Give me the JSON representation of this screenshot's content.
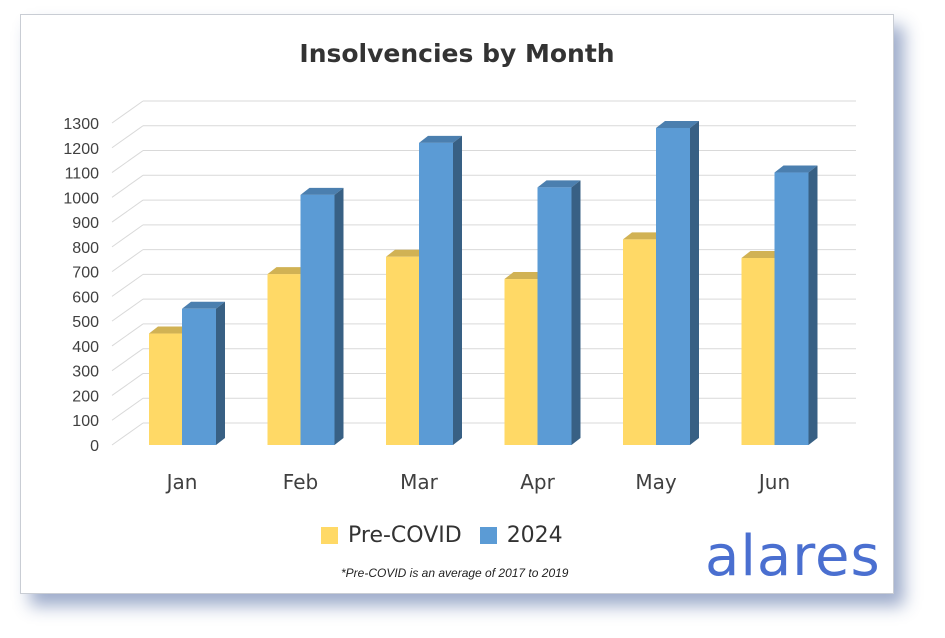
{
  "chart_data": {
    "type": "bar",
    "title": "Insolvencies by Month",
    "categories": [
      "Jan",
      "Feb",
      "Mar",
      "Apr",
      "May",
      "Jun"
    ],
    "series": [
      {
        "name": "Pre-COVID",
        "values": [
          450,
          690,
          760,
          670,
          830,
          755
        ],
        "color": "#ffd966"
      },
      {
        "name": "2024",
        "values": [
          550,
          1010,
          1220,
          1040,
          1280,
          1100
        ],
        "color": "#5b9bd5"
      }
    ],
    "yticks": [
      0,
      100,
      200,
      300,
      400,
      500,
      600,
      700,
      800,
      900,
      1000,
      1100,
      1200,
      1300
    ],
    "ylim": [
      0,
      1300
    ],
    "grid": true,
    "style": "3d-clustered-column",
    "legend_position": "bottom"
  },
  "footnote": "*Pre-COVID is an average of 2017 to 2019",
  "brand": "alares"
}
